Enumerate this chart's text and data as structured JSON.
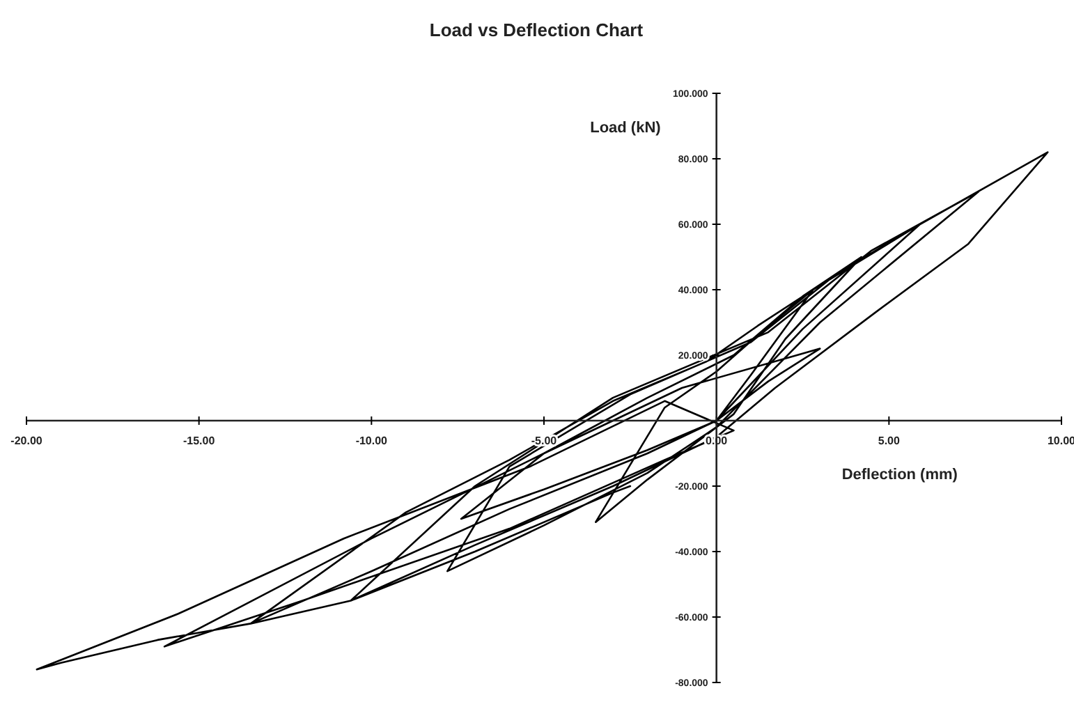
{
  "chart_data": {
    "type": "line",
    "title": "Load vs Deflection Chart",
    "xlabel": "Deflection (mm)",
    "ylabel": "Load (kN)",
    "xlim": [
      -20,
      10
    ],
    "ylim": [
      -80,
      100
    ],
    "xticks": [
      {
        "value": -20,
        "label": "-20.00"
      },
      {
        "value": -15,
        "label": "-15.00"
      },
      {
        "value": -10,
        "label": "-10.00"
      },
      {
        "value": -5,
        "label": "-5.00"
      },
      {
        "value": 0,
        "label": "0.00"
      },
      {
        "value": 5,
        "label": "5.00"
      },
      {
        "value": 10,
        "label": "10.00"
      }
    ],
    "yticks": [
      {
        "value": -80,
        "label": "-80.000"
      },
      {
        "value": -60,
        "label": "-60.000"
      },
      {
        "value": -40,
        "label": "-40.000"
      },
      {
        "value": -20,
        "label": "-20.000"
      },
      {
        "value": 20,
        "label": "20.000"
      },
      {
        "value": 40,
        "label": "40.000"
      },
      {
        "value": 60,
        "label": "60.000"
      },
      {
        "value": 80,
        "label": "80.000"
      },
      {
        "value": 100,
        "label": "100.000"
      }
    ],
    "grid": false,
    "marker": "none",
    "line_style": "solid",
    "series": [
      {
        "color": "#000000",
        "x": [
          0,
          1.0,
          2.8,
          1.4,
          0,
          -1.5,
          -3.5,
          -2,
          -0.5,
          0.5,
          2.0,
          4.2,
          2.5,
          0.5,
          -2,
          -5,
          -7.4,
          -5,
          -2,
          0,
          2.5,
          5.9,
          3.5,
          1,
          -2.5,
          -6,
          -7.8,
          -5,
          -2,
          0,
          3,
          7.6,
          4.5,
          1.5,
          -3,
          -7,
          -10.6,
          -7,
          -3,
          0,
          1.7,
          4.6,
          7.3,
          9.6,
          5.9,
          2.8,
          1.2,
          -0.3,
          -3,
          -6,
          -9,
          -13.5,
          -10,
          -6,
          -2,
          0,
          1.5,
          3,
          -1,
          -5,
          -10,
          -16,
          -12,
          -6,
          -1.5,
          0.5,
          -1.5,
          -5.4,
          -10.8,
          -15.6,
          -19.7,
          -19,
          -16.2,
          -13.5,
          -10.6,
          -7,
          -3,
          -2.5
        ],
        "values": [
          0,
          14,
          40,
          28,
          15,
          4,
          -31,
          -18,
          -6,
          2,
          25,
          50,
          38,
          20,
          7,
          -10,
          -30,
          -21,
          -9,
          0,
          28,
          60,
          45,
          24,
          8,
          -14,
          -46,
          -32,
          -16,
          -2,
          30,
          70,
          52,
          27,
          7,
          -20,
          -55,
          -38,
          -20,
          -5,
          10,
          33,
          54,
          82,
          60,
          40,
          29,
          18,
          6,
          -12,
          -28,
          -62,
          -46,
          -27,
          -10,
          0,
          12,
          22,
          10,
          -10,
          -36,
          -69,
          -55,
          -33,
          -12,
          -3,
          6,
          -14,
          -36,
          -59,
          -76,
          -74,
          -67,
          -62,
          -55,
          -40,
          -22,
          -20
        ]
      }
    ]
  }
}
